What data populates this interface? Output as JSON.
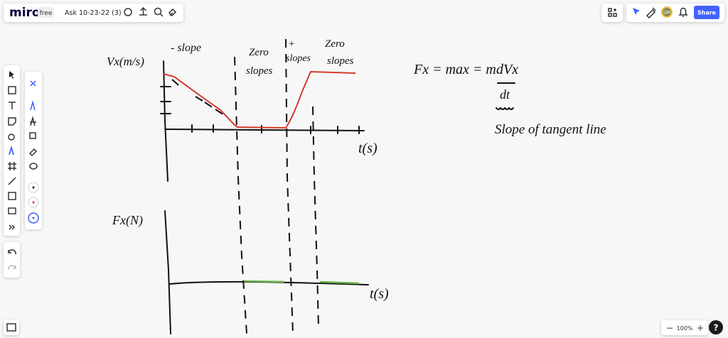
{
  "header": {
    "logo": "miro",
    "plan": "free",
    "board_title": "Ask 10-23-22 (3)",
    "avatar": "GM",
    "share": "Share"
  },
  "zoom": {
    "level": "100%",
    "minus": "−",
    "plus": "+",
    "help": "?"
  },
  "sketch": {
    "velocity_axis": "Vx(m/s)",
    "neg_slope": "- slope",
    "zero_slopes_1": [
      "Zero",
      "slopes"
    ],
    "pos_slopes": [
      "+",
      "slopes"
    ],
    "zero_slopes_2": [
      "Zero",
      "slopes"
    ],
    "time_axis_1": "t(s)",
    "force_axis": "Fx(N)",
    "time_axis_2": "t(s)",
    "equation": "Fx = max = m",
    "derivative_top": "dVx",
    "derivative_bottom": "dt",
    "note": "Slope of tangent line"
  }
}
